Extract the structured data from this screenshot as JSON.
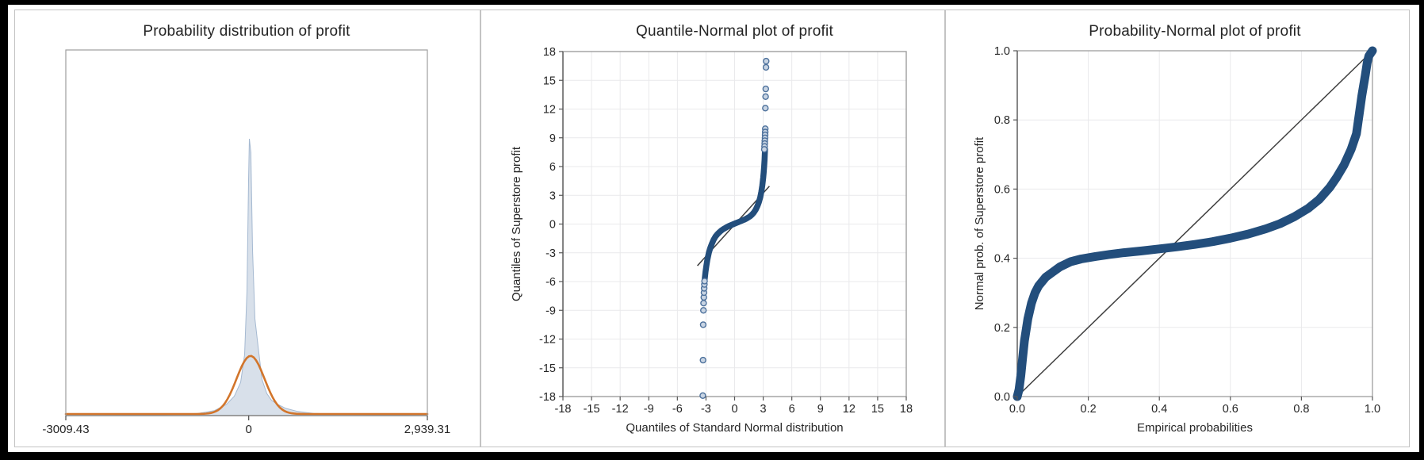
{
  "panels": [
    {
      "title": "Probability distribution of profit"
    },
    {
      "title": "Quantile-Normal plot of profit",
      "x_label": "Quantiles of Standard Normal distribution",
      "y_label": "Quantiles of Superstore profit"
    },
    {
      "title": "Probability-Normal plot of profit",
      "x_label": "Empirical probabilities",
      "y_label": "Normal prob. of Superstore profit"
    }
  ],
  "colors": {
    "navy": "#234e7c",
    "point_fill": "#c8d4e3",
    "point_stroke": "#4d719c",
    "orange": "#d2752b",
    "density_fill": "#d8e0ea",
    "density_stroke": "#a5b9d1",
    "grid": "#e9e9eb",
    "box": "#9e9e9e",
    "axis": "#4a4a4a",
    "ref_line": "#3f3f3f",
    "text": "#262626"
  },
  "chart_data": [
    {
      "type": "area",
      "title": "Probability distribution of profit",
      "xlabel": "",
      "ylabel": "",
      "xlim": [
        -3009.43,
        2939.31
      ],
      "x_tick_values": [
        -3009.43,
        0,
        2939.31
      ],
      "x_tick_labels": [
        "-3009.43",
        "0",
        "2,939.31"
      ],
      "grid": false,
      "series_note": "kernel density of profit (filled) with fitted normal overlay (orange line)",
      "density_profile": [
        [
          -3009,
          0.0
        ],
        [
          -1500,
          0.002
        ],
        [
          -824,
          0.008
        ],
        [
          -563,
          0.018
        ],
        [
          -368,
          0.04
        ],
        [
          -237,
          0.07
        ],
        [
          -133,
          0.12
        ],
        [
          -68,
          0.22
        ],
        [
          -29,
          0.45
        ],
        [
          -3,
          0.85
        ],
        [
          10,
          1.0
        ],
        [
          36,
          0.95
        ],
        [
          63,
          0.6
        ],
        [
          102,
          0.35
        ],
        [
          154,
          0.25
        ],
        [
          219,
          0.13
        ],
        [
          297,
          0.08
        ],
        [
          376,
          0.055
        ],
        [
          480,
          0.04
        ],
        [
          610,
          0.026
        ],
        [
          806,
          0.015
        ],
        [
          1067,
          0.008
        ],
        [
          1523,
          0.005
        ],
        [
          2100,
          0.003
        ],
        [
          2939,
          0.0
        ]
      ],
      "normal_curve": {
        "mean": 30,
        "sd": 230,
        "peak_height": 0.21
      }
    },
    {
      "type": "scatter",
      "title": "Quantile-Normal plot of profit",
      "xlabel": "Quantiles of Standard Normal distribution",
      "ylabel": "Quantiles of Superstore profit",
      "xlim": [
        -18,
        18
      ],
      "ylim": [
        -18,
        18
      ],
      "x_tick_labels": [
        "-18",
        "-15",
        "-12",
        "-9",
        "-6",
        "-3",
        "0",
        "3",
        "6",
        "9",
        "12",
        "15",
        "18"
      ],
      "y_tick_labels": [
        "18",
        "15",
        "12",
        "9",
        "6",
        "3",
        "0",
        "-3",
        "-6",
        "-9",
        "-12",
        "-15",
        "-18"
      ],
      "tick_values": [
        -18,
        -15,
        -12,
        -9,
        -6,
        -3,
        0,
        3,
        6,
        9,
        12,
        15,
        18
      ],
      "grid": true,
      "ref_line": [
        [
          -3.9,
          -4.35
        ],
        [
          3.65,
          3.95
        ]
      ],
      "s_curve": [
        [
          -3.15,
          -5.9
        ],
        [
          -3.05,
          -5.0
        ],
        [
          -2.95,
          -4.3
        ],
        [
          -2.85,
          -3.7
        ],
        [
          -2.7,
          -3.0
        ],
        [
          -2.55,
          -2.5
        ],
        [
          -2.4,
          -2.1
        ],
        [
          -2.2,
          -1.65
        ],
        [
          -2.0,
          -1.3
        ],
        [
          -1.8,
          -1.05
        ],
        [
          -1.6,
          -0.85
        ],
        [
          -1.4,
          -0.68
        ],
        [
          -1.2,
          -0.54
        ],
        [
          -1.0,
          -0.42
        ],
        [
          -0.8,
          -0.31
        ],
        [
          -0.6,
          -0.21
        ],
        [
          -0.4,
          -0.12
        ],
        [
          -0.2,
          -0.04
        ],
        [
          0.0,
          0.04
        ],
        [
          0.2,
          0.12
        ],
        [
          0.4,
          0.2
        ],
        [
          0.6,
          0.28
        ],
        [
          0.8,
          0.36
        ],
        [
          1.0,
          0.45
        ],
        [
          1.2,
          0.55
        ],
        [
          1.4,
          0.66
        ],
        [
          1.6,
          0.79
        ],
        [
          1.8,
          0.96
        ],
        [
          2.0,
          1.18
        ],
        [
          2.2,
          1.48
        ],
        [
          2.4,
          1.9
        ],
        [
          2.55,
          2.3
        ],
        [
          2.7,
          2.85
        ],
        [
          2.8,
          3.35
        ],
        [
          2.9,
          4.0
        ],
        [
          3.0,
          4.85
        ],
        [
          3.05,
          5.4
        ],
        [
          3.1,
          6.05
        ],
        [
          3.14,
          6.7
        ],
        [
          3.17,
          7.3
        ],
        [
          3.19,
          7.8
        ]
      ],
      "upper_outliers": [
        [
          3.31,
          17.0
        ],
        [
          3.29,
          16.35
        ],
        [
          3.27,
          14.1
        ],
        [
          3.25,
          13.3
        ],
        [
          3.23,
          12.1
        ],
        [
          3.22,
          9.95
        ],
        [
          3.21,
          9.6
        ],
        [
          3.2,
          9.3
        ],
        [
          3.19,
          9.0
        ],
        [
          3.17,
          8.7
        ],
        [
          3.16,
          8.4
        ],
        [
          3.14,
          8.1
        ],
        [
          3.12,
          7.8
        ]
      ],
      "lower_outliers": [
        [
          -3.33,
          -17.9
        ],
        [
          -3.31,
          -14.2
        ],
        [
          -3.29,
          -10.5
        ],
        [
          -3.27,
          -9.0
        ],
        [
          -3.25,
          -8.25
        ],
        [
          -3.23,
          -7.65
        ],
        [
          -3.21,
          -7.15
        ],
        [
          -3.19,
          -6.7
        ],
        [
          -3.17,
          -6.3
        ],
        [
          -3.15,
          -5.95
        ]
      ]
    },
    {
      "type": "line",
      "title": "Probability-Normal plot of profit",
      "xlabel": "Empirical probabilities",
      "ylabel": "Normal prob. of Superstore profit",
      "xlim": [
        0,
        1
      ],
      "ylim": [
        0,
        1
      ],
      "x_tick_labels": [
        "0.0",
        "0.2",
        "0.4",
        "0.6",
        "0.8",
        "1.0"
      ],
      "y_tick_labels": [
        "0.0",
        "0.2",
        "0.4",
        "0.6",
        "0.8",
        "1.0"
      ],
      "tick_values": [
        0,
        0.2,
        0.4,
        0.6,
        0.8,
        1.0
      ],
      "grid": true,
      "ref_line": [
        [
          0,
          0
        ],
        [
          1,
          1
        ]
      ],
      "curve": [
        [
          0.0,
          0.0
        ],
        [
          0.005,
          0.02
        ],
        [
          0.01,
          0.06
        ],
        [
          0.015,
          0.11
        ],
        [
          0.02,
          0.16
        ],
        [
          0.03,
          0.225
        ],
        [
          0.04,
          0.27
        ],
        [
          0.05,
          0.3
        ],
        [
          0.06,
          0.32
        ],
        [
          0.08,
          0.345
        ],
        [
          0.1,
          0.36
        ],
        [
          0.12,
          0.375
        ],
        [
          0.15,
          0.39
        ],
        [
          0.18,
          0.398
        ],
        [
          0.22,
          0.405
        ],
        [
          0.26,
          0.411
        ],
        [
          0.3,
          0.416
        ],
        [
          0.35,
          0.421
        ],
        [
          0.4,
          0.427
        ],
        [
          0.45,
          0.433
        ],
        [
          0.5,
          0.44
        ],
        [
          0.55,
          0.448
        ],
        [
          0.6,
          0.458
        ],
        [
          0.65,
          0.47
        ],
        [
          0.7,
          0.485
        ],
        [
          0.74,
          0.5
        ],
        [
          0.78,
          0.52
        ],
        [
          0.82,
          0.545
        ],
        [
          0.85,
          0.57
        ],
        [
          0.88,
          0.605
        ],
        [
          0.9,
          0.635
        ],
        [
          0.92,
          0.67
        ],
        [
          0.94,
          0.715
        ],
        [
          0.955,
          0.76
        ],
        [
          0.97,
          0.87
        ],
        [
          0.98,
          0.93
        ],
        [
          0.985,
          0.965
        ],
        [
          0.99,
          0.985
        ],
        [
          1.0,
          1.0
        ]
      ]
    }
  ]
}
